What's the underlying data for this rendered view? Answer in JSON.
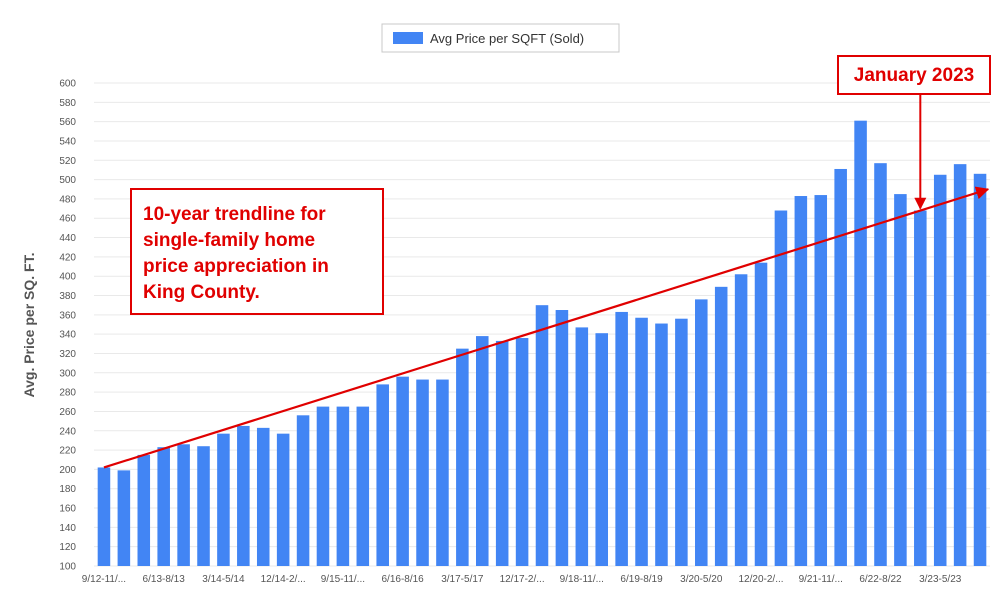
{
  "chart_data": {
    "type": "bar",
    "ylabel": "Avg. Price per SQ. FT.",
    "ylim": [
      100,
      600
    ],
    "yticks": [
      100,
      120,
      140,
      160,
      180,
      200,
      220,
      240,
      260,
      280,
      300,
      320,
      340,
      360,
      380,
      400,
      420,
      440,
      460,
      480,
      500,
      520,
      540,
      560,
      580,
      600
    ],
    "grid": true,
    "legend_position": "top-center",
    "colors": {
      "bar": "#4285f4",
      "annotation": "#e00000",
      "grid": "#e9e9e9"
    },
    "series": [
      {
        "name": "Avg Price per SQFT (Sold)",
        "values": [
          202,
          199,
          215,
          223,
          226,
          224,
          237,
          245,
          243,
          237,
          256,
          265,
          265,
          265,
          288,
          296,
          293,
          293,
          325,
          338,
          333,
          336,
          370,
          365,
          347,
          341,
          363,
          357,
          351,
          356,
          376,
          389,
          402,
          414,
          468,
          483,
          484,
          511,
          561,
          517,
          485,
          468,
          505,
          516,
          506
        ]
      }
    ],
    "x_tick_labels": [
      "9/12-11/...",
      "6/13-8/13",
      "3/14-5/14",
      "12/14-2/...",
      "9/15-11/...",
      "6/16-8/16",
      "3/17-5/17",
      "12/17-2/...",
      "9/18-11/...",
      "6/19-8/19",
      "3/20-5/20",
      "12/20-2/...",
      "9/21-11/...",
      "6/22-8/22",
      "3/23-5/23"
    ],
    "x_tick_every": 3,
    "trendline": {
      "from_value": 202,
      "to_value": 490
    },
    "annotations": {
      "trend_lines": [
        "10-year trendline for",
        "single-family home",
        "price appreciation in",
        "King County."
      ],
      "jan_label": "January 2023",
      "jan_bar_index": 41
    }
  }
}
